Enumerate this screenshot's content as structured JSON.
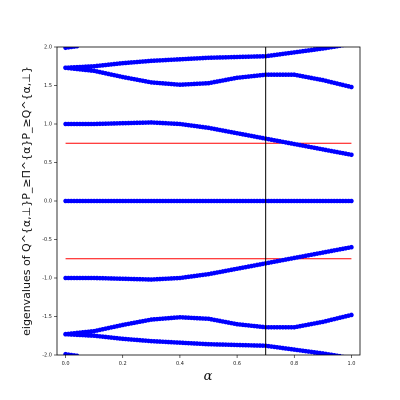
{
  "chart_data": {
    "type": "scatter",
    "xlabel": "α",
    "ylabel": "eigenvalues of Q^{α,⊥}P_≥Π^{α}P_≥Q^{α,⊥}",
    "xlim": [
      -0.03,
      1.03
    ],
    "ylim": [
      -2.0,
      2.0
    ],
    "x_ticks": [
      "0.0",
      "0.2",
      "0.4",
      "0.6",
      "0.8",
      "1.0"
    ],
    "y_ticks": [
      "-2.0",
      "-1.5",
      "-1.0",
      "-0.5",
      "0.0",
      "0.5",
      "1.0",
      "1.5",
      "2.0"
    ],
    "x_tick_values": [
      0.0,
      0.2,
      0.4,
      0.6,
      0.8,
      1.0
    ],
    "y_tick_values": [
      -2.0,
      -1.5,
      -1.0,
      -0.5,
      0.0,
      0.5,
      1.0,
      1.5,
      2.0
    ],
    "grid": false,
    "colors": {
      "points": "#0000ff",
      "hline": "#ff0000",
      "vline": "#000000"
    },
    "hlines": [
      0.75,
      -0.75
    ],
    "vline_x": 0.7,
    "series": [
      {
        "x": [
          0.0,
          0.1,
          0.2,
          0.3,
          0.4,
          0.5,
          0.6,
          0.7,
          0.8,
          0.9,
          1.0
        ],
        "y": [
          1.73,
          1.75,
          1.79,
          1.82,
          1.84,
          1.86,
          1.87,
          1.88,
          1.93,
          1.98,
          2.04
        ]
      },
      {
        "x": [
          0.0,
          0.1,
          0.2,
          0.3,
          0.4,
          0.5,
          0.6,
          0.7,
          0.8,
          0.9,
          1.0
        ],
        "y": [
          1.73,
          1.69,
          1.61,
          1.54,
          1.51,
          1.53,
          1.6,
          1.64,
          1.64,
          1.57,
          1.48
        ]
      },
      {
        "x": [
          0.0,
          0.1,
          0.2,
          0.3,
          0.4,
          0.5,
          0.6,
          0.7,
          0.8,
          0.9,
          1.0
        ],
        "y": [
          1.0,
          1.0,
          1.01,
          1.02,
          1.0,
          0.95,
          0.88,
          0.81,
          0.74,
          0.67,
          0.6
        ]
      },
      {
        "x": [
          0.0,
          0.2,
          0.4,
          0.6,
          0.8,
          1.0
        ],
        "y": [
          0.0,
          0.0,
          0.0,
          0.0,
          0.0,
          0.0
        ]
      },
      {
        "x": [
          0.0,
          0.1,
          0.2,
          0.3,
          0.4,
          0.5,
          0.6,
          0.7,
          0.8,
          0.9,
          1.0
        ],
        "y": [
          -1.0,
          -1.0,
          -1.01,
          -1.02,
          -1.0,
          -0.95,
          -0.88,
          -0.81,
          -0.74,
          -0.67,
          -0.6
        ]
      },
      {
        "x": [
          0.0,
          0.1,
          0.2,
          0.3,
          0.4,
          0.5,
          0.6,
          0.7,
          0.8,
          0.9,
          1.0
        ],
        "y": [
          -1.73,
          -1.69,
          -1.61,
          -1.54,
          -1.51,
          -1.53,
          -1.6,
          -1.64,
          -1.64,
          -1.57,
          -1.48
        ]
      },
      {
        "x": [
          0.0,
          0.1,
          0.2,
          0.3,
          0.4,
          0.5,
          0.6,
          0.7,
          0.8,
          0.9,
          1.0
        ],
        "y": [
          -1.73,
          -1.75,
          -1.79,
          -1.82,
          -1.84,
          -1.86,
          -1.87,
          -1.88,
          -1.93,
          -1.98,
          -2.04
        ]
      },
      {
        "x": [
          0.0,
          0.02,
          0.04
        ],
        "y": [
          1.99,
          2.0,
          2.01
        ]
      },
      {
        "x": [
          0.0,
          0.02,
          0.04
        ],
        "y": [
          -1.99,
          -2.0,
          -2.01
        ]
      }
    ]
  }
}
